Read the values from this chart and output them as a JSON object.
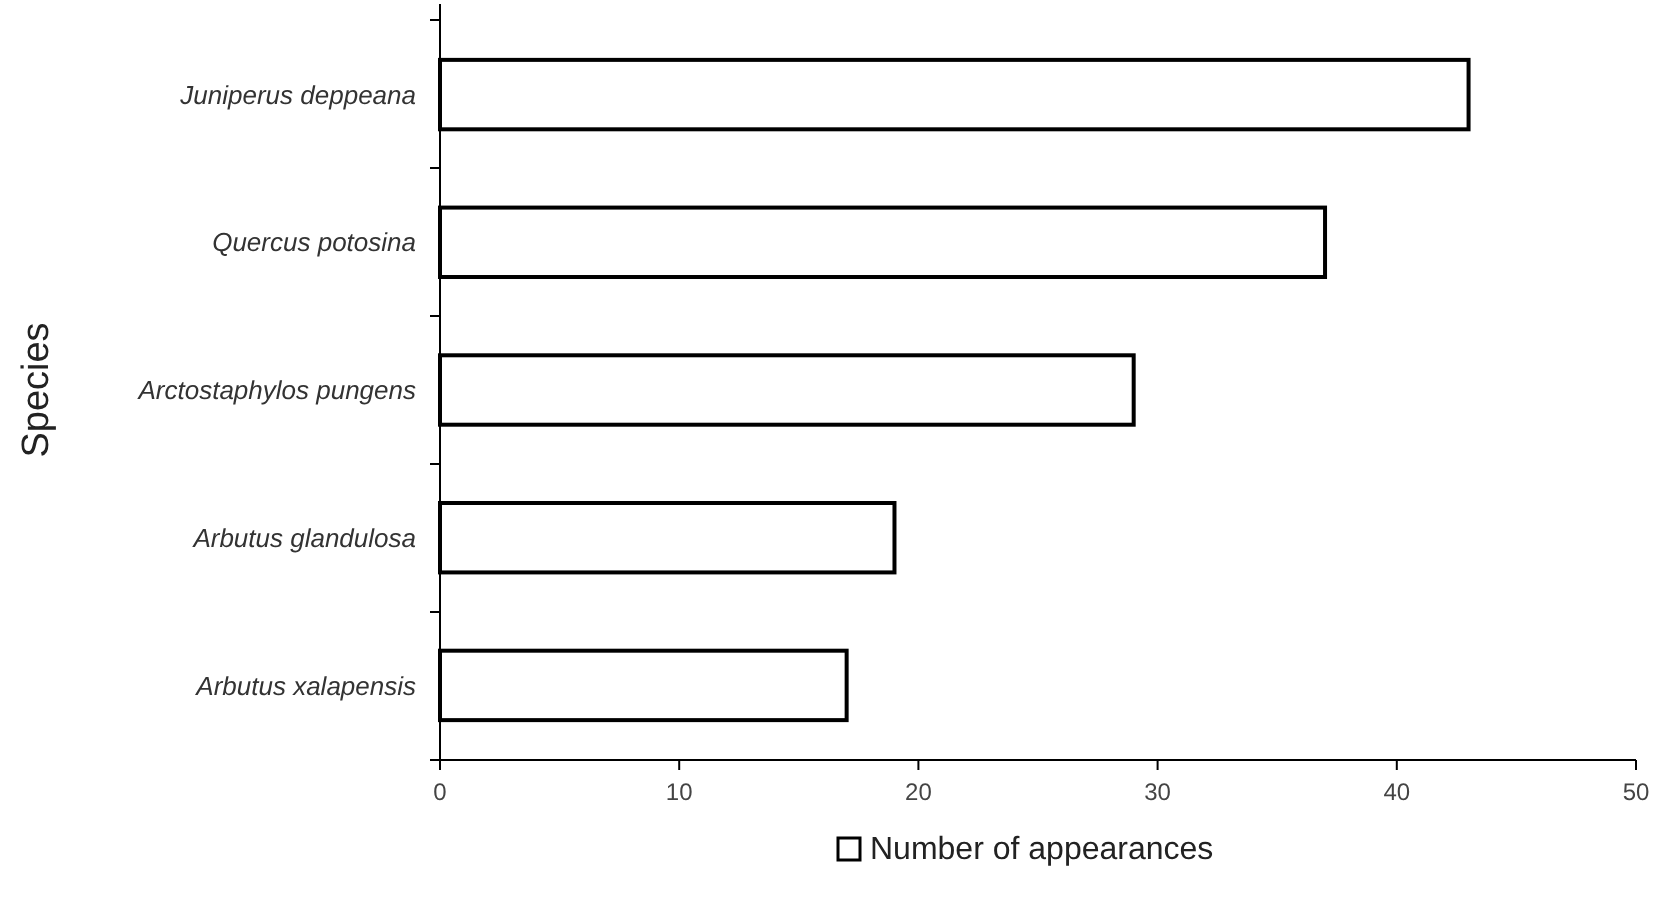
{
  "chart_data": {
    "type": "bar",
    "orientation": "horizontal",
    "ylabel": "Species",
    "categories": [
      "Juniperus deppeana",
      "Quercus potosina",
      "Arctostaphylos pungens",
      "Arbutus glandulosa",
      "Arbutus xalapensis"
    ],
    "series": [
      {
        "name": "Number of appearances",
        "color": "#ffffff",
        "values": [
          43,
          37,
          29,
          19,
          17
        ]
      }
    ],
    "xlim": [
      0,
      50
    ],
    "xticks": [
      0,
      10,
      20,
      30,
      40,
      50
    ],
    "grid": false,
    "legend": "bottom"
  }
}
